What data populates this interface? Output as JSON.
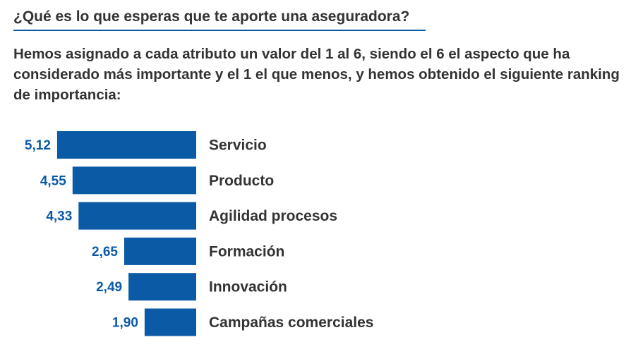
{
  "header": {
    "title": "¿Qué es lo que esperas que te aporte una aseguradora?",
    "intro": "Hemos asignado a cada atributo un valor del 1 al 6, siendo el 6 el aspecto que ha considerado más importante y el 1 el que menos, y hemos obtenido el siguiente ranking de importancia:"
  },
  "colors": {
    "bar": "#0b5aa6",
    "value_text": "#0b5aa6",
    "category_text": "#333333",
    "rule": "#0b5aa6"
  },
  "chart_data": {
    "type": "bar",
    "orientation": "horizontal",
    "bar_alignment": "right-aligned",
    "categories": [
      "Servicio",
      "Producto",
      "Agilidad procesos",
      "Formación",
      "Innovación",
      "Campañas comerciales"
    ],
    "values": [
      5.12,
      4.55,
      4.33,
      2.65,
      2.49,
      1.9
    ],
    "value_labels": [
      "5,12",
      "4,55",
      "4,33",
      "2,65",
      "2,49",
      "1,90"
    ],
    "title": "",
    "xlabel": "",
    "ylabel": "",
    "xlim": [
      0,
      6
    ],
    "grid": false,
    "legend": "none"
  }
}
